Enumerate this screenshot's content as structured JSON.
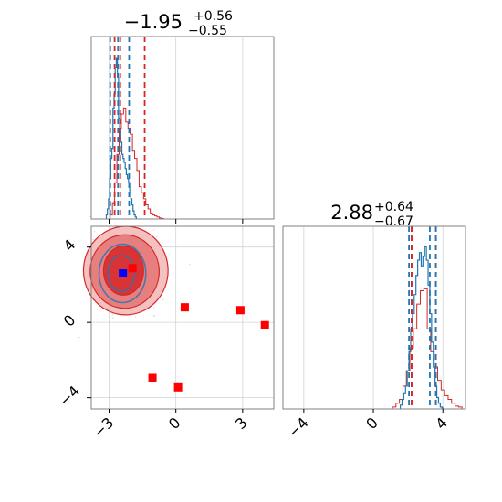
{
  "chart_data": {
    "type": "scatter",
    "subtype": "corner-plot",
    "grid": true,
    "colors": {
      "blue": "#1f77b4",
      "red": "#d62728",
      "marker_blue": "#0000ff",
      "marker_red": "#ff0000",
      "samples": "#b0b0b0"
    },
    "param_1": {
      "title_value": "−1.95",
      "title_plus": "+0.56",
      "title_minus": "−0.55",
      "xlim": [
        -3.8,
        4.4
      ],
      "ticks": [
        -3,
        0,
        3
      ],
      "tick_labels": [
        "−3",
        "0",
        "3"
      ],
      "blue_quantiles": [
        -2.95,
        -2.6,
        -2.1
      ],
      "red_quantiles": [
        -2.75,
        -2.5,
        -1.4
      ],
      "red_hist_bins": [
        -2.9,
        -2.8,
        -2.7,
        -2.6,
        -2.5,
        -2.4,
        -2.3,
        -2.2,
        -2.1,
        -2.0,
        -1.9,
        -1.8,
        -1.7,
        -1.6,
        -1.5,
        -1.4,
        -1.3,
        -1.2,
        -1.1,
        -1.0,
        -0.9,
        -0.8,
        -0.7,
        -0.6
      ],
      "red_hist_counts": [
        0.02,
        0.08,
        0.18,
        0.32,
        0.45,
        0.52,
        0.55,
        0.48,
        0.45,
        0.42,
        0.34,
        0.3,
        0.24,
        0.16,
        0.13,
        0.1,
        0.07,
        0.05,
        0.03,
        0.02,
        0.015,
        0.01,
        0.005,
        0.002
      ],
      "blue_hist_bins": [
        -3.1,
        -3.05,
        -3.0,
        -2.95,
        -2.9,
        -2.85,
        -2.8,
        -2.75,
        -2.7,
        -2.65,
        -2.6,
        -2.55,
        -2.5,
        -2.45,
        -2.4,
        -2.35,
        -2.3,
        -2.25,
        -2.2,
        -2.15,
        -2.1,
        -2.05,
        -2.0,
        -1.95,
        -1.9,
        -1.85,
        -1.8
      ],
      "blue_hist_counts": [
        0.02,
        0.05,
        0.1,
        0.2,
        0.3,
        0.35,
        0.55,
        0.62,
        0.75,
        0.8,
        0.7,
        0.5,
        0.45,
        0.38,
        0.32,
        0.3,
        0.28,
        0.25,
        0.22,
        0.2,
        0.18,
        0.14,
        0.1,
        0.07,
        0.04,
        0.02,
        0.01
      ]
    },
    "param_2": {
      "title_value": "2.88",
      "title_plus": "+0.64",
      "title_minus": "−0.67",
      "xlim": [
        -5.2,
        5.3
      ],
      "ticks": [
        -4,
        0,
        4
      ],
      "tick_labels": [
        "−4",
        "0",
        "4"
      ],
      "blue_quantiles": [
        2.05,
        3.25,
        3.6
      ],
      "red_quantiles": [
        2.2,
        2.2,
        3.6
      ],
      "red_hist_bins": [
        1.2,
        1.4,
        1.6,
        1.8,
        2.0,
        2.2,
        2.4,
        2.6,
        2.8,
        3.0,
        3.2,
        3.4,
        3.6,
        3.8,
        4.0,
        4.2,
        4.4,
        4.6,
        4.8,
        5.0
      ],
      "red_hist_counts": [
        0.01,
        0.03,
        0.05,
        0.12,
        0.2,
        0.32,
        0.42,
        0.55,
        0.62,
        0.63,
        0.42,
        0.3,
        0.22,
        0.15,
        0.1,
        0.07,
        0.05,
        0.03,
        0.015,
        0.01
      ],
      "blue_hist_bins": [
        1.6,
        1.7,
        1.8,
        1.9,
        2.0,
        2.1,
        2.2,
        2.3,
        2.4,
        2.5,
        2.6,
        2.7,
        2.8,
        2.9,
        3.0,
        3.1,
        3.2,
        3.3,
        3.4,
        3.5,
        3.6,
        3.7,
        3.8,
        3.9,
        4.0
      ],
      "blue_hist_counts": [
        0.02,
        0.05,
        0.08,
        0.12,
        0.2,
        0.3,
        0.42,
        0.5,
        0.6,
        0.7,
        0.78,
        0.82,
        0.75,
        0.8,
        0.85,
        0.78,
        0.65,
        0.5,
        0.35,
        0.22,
        0.12,
        0.06,
        0.03,
        0.01,
        0.005
      ]
    },
    "joint": {
      "xlim": [
        -3.8,
        4.4
      ],
      "ylim": [
        -4.6,
        5.1
      ],
      "xticks": [
        -3,
        0,
        3
      ],
      "xtick_labels": [
        "−3",
        "0",
        "3"
      ],
      "yticks": [
        -4,
        0,
        4
      ],
      "ytick_labels": [
        "−4",
        "0",
        "4"
      ],
      "red_contours": [
        {
          "cx": -2.35,
          "cy": 2.75,
          "rx": 0.9,
          "ry": 1.3
        },
        {
          "cx": -2.3,
          "cy": 2.7,
          "rx": 1.55,
          "ry": 1.95
        },
        {
          "cx": -2.25,
          "cy": 2.75,
          "rx": 1.9,
          "ry": 2.35
        }
      ],
      "blue_contours": [
        {
          "cx": -2.45,
          "cy": 2.6,
          "rx": 0.6,
          "ry": 0.95
        },
        {
          "cx": -2.4,
          "cy": 2.6,
          "rx": 1.05,
          "ry": 1.55
        }
      ],
      "blue_marker": [
        -2.38,
        2.6
      ],
      "red_markers": [
        [
          -1.95,
          2.88
        ],
        [
          0.4,
          0.8
        ],
        [
          2.9,
          0.65
        ],
        [
          4.0,
          -0.15
        ],
        [
          -1.05,
          -2.95
        ],
        [
          0.1,
          -3.45
        ]
      ]
    }
  }
}
